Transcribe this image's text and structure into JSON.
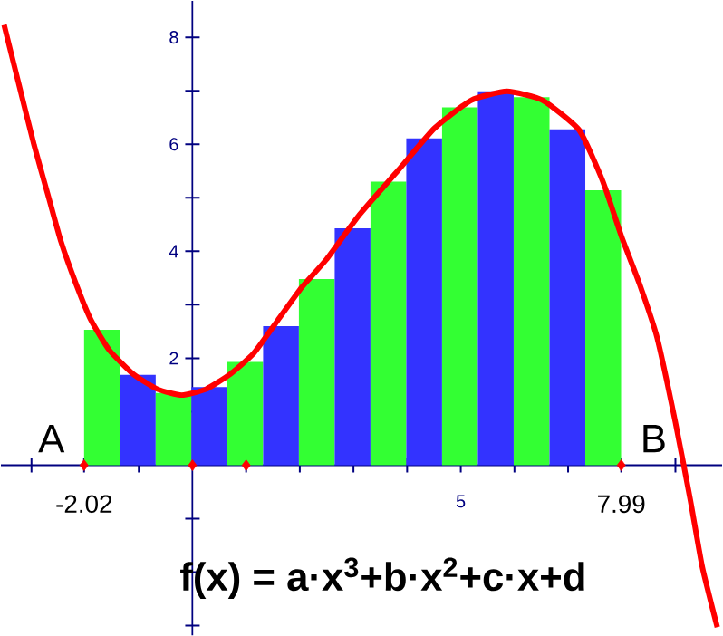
{
  "chart_data": {
    "type": "bar",
    "xlim": [
      -3.57,
      9.87
    ],
    "ylim": [
      -3.18,
      8.68
    ],
    "xticks": [
      {
        "value": -3,
        "label": null
      },
      {
        "value": -2.02,
        "label": "-2.02"
      },
      {
        "value": -1,
        "label": null
      },
      {
        "value": 0,
        "label": null
      },
      {
        "value": 1,
        "label": null
      },
      {
        "value": 2,
        "label": null
      },
      {
        "value": 3,
        "label": null
      },
      {
        "value": 4,
        "label": null
      },
      {
        "value": 5,
        "label": "5"
      },
      {
        "value": 6,
        "label": null
      },
      {
        "value": 7,
        "label": null
      },
      {
        "value": 7.99,
        "label": "7.99"
      },
      {
        "value": 9,
        "label": null
      }
    ],
    "yticks": [
      {
        "value": -3,
        "label": null
      },
      {
        "value": -2,
        "label": null
      },
      {
        "value": -1,
        "label": null
      },
      {
        "value": 0,
        "label": null
      },
      {
        "value": 1,
        "label": null
      },
      {
        "value": 2,
        "label": "2"
      },
      {
        "value": 3,
        "label": null
      },
      {
        "value": 4,
        "label": "4"
      },
      {
        "value": 5,
        "label": null
      },
      {
        "value": 6,
        "label": "6"
      },
      {
        "value": 7,
        "label": null
      },
      {
        "value": 8,
        "label": "8"
      }
    ],
    "grid": false,
    "series": [
      {
        "x": [
          -1.686,
          -1.019,
          -0.352,
          0.315,
          0.982,
          1.65,
          2.317,
          2.984,
          3.651,
          4.318,
          4.985,
          5.652,
          6.32,
          6.987,
          7.654
        ],
        "values": [
          2.53,
          1.69,
          1.35,
          1.46,
          1.93,
          2.6,
          3.48,
          4.43,
          5.3,
          6.11,
          6.69,
          6.99,
          6.88,
          6.28,
          5.14
        ],
        "colors": [
          "#33ff33",
          "#3333ff",
          "#33ff33",
          "#3333ff",
          "#33ff33",
          "#3333ff",
          "#33ff33",
          "#3333ff",
          "#33ff33",
          "#3333ff",
          "#33ff33",
          "#3333ff",
          "#33ff33",
          "#3333ff",
          "#33ff33"
        ]
      },
      {
        "type": "line",
        "color": "#ff0000",
        "line_style": "solid",
        "marker": "none",
        "x": [
          -3.51,
          -3.23,
          -2.95,
          -2.67,
          -2.45,
          -2.17,
          -1.89,
          -1.55,
          -1.1,
          -0.65,
          -0.2,
          0.25,
          0.7,
          1.14,
          1.59,
          2.04,
          2.49,
          3.11,
          3.84,
          4.51,
          5.19,
          5.86,
          6.53,
          7.21,
          7.65,
          7.99,
          8.33,
          8.66,
          9.0,
          9.28,
          9.5,
          9.78
        ],
        "values": [
          8.23,
          7.1,
          5.98,
          4.97,
          4.18,
          3.39,
          2.71,
          2.15,
          1.7,
          1.42,
          1.31,
          1.42,
          1.7,
          2.09,
          2.71,
          3.33,
          3.84,
          4.68,
          5.52,
          6.3,
          6.82,
          6.99,
          6.82,
          6.26,
          5.3,
          4.29,
          3.39,
          2.38,
          0.8,
          -0.66,
          -1.9,
          -3.03
        ]
      },
      {
        "type": "scatter",
        "color": "#ff0000",
        "marker": "diamond",
        "x": [
          -2.02,
          0,
          1,
          7.99
        ],
        "values": [
          0,
          0,
          0,
          0
        ]
      }
    ],
    "annotations": [
      "A",
      "B",
      "**f(x) = a·x$^{3}$+b·x$^{2}$+c·x+d**"
    ]
  }
}
